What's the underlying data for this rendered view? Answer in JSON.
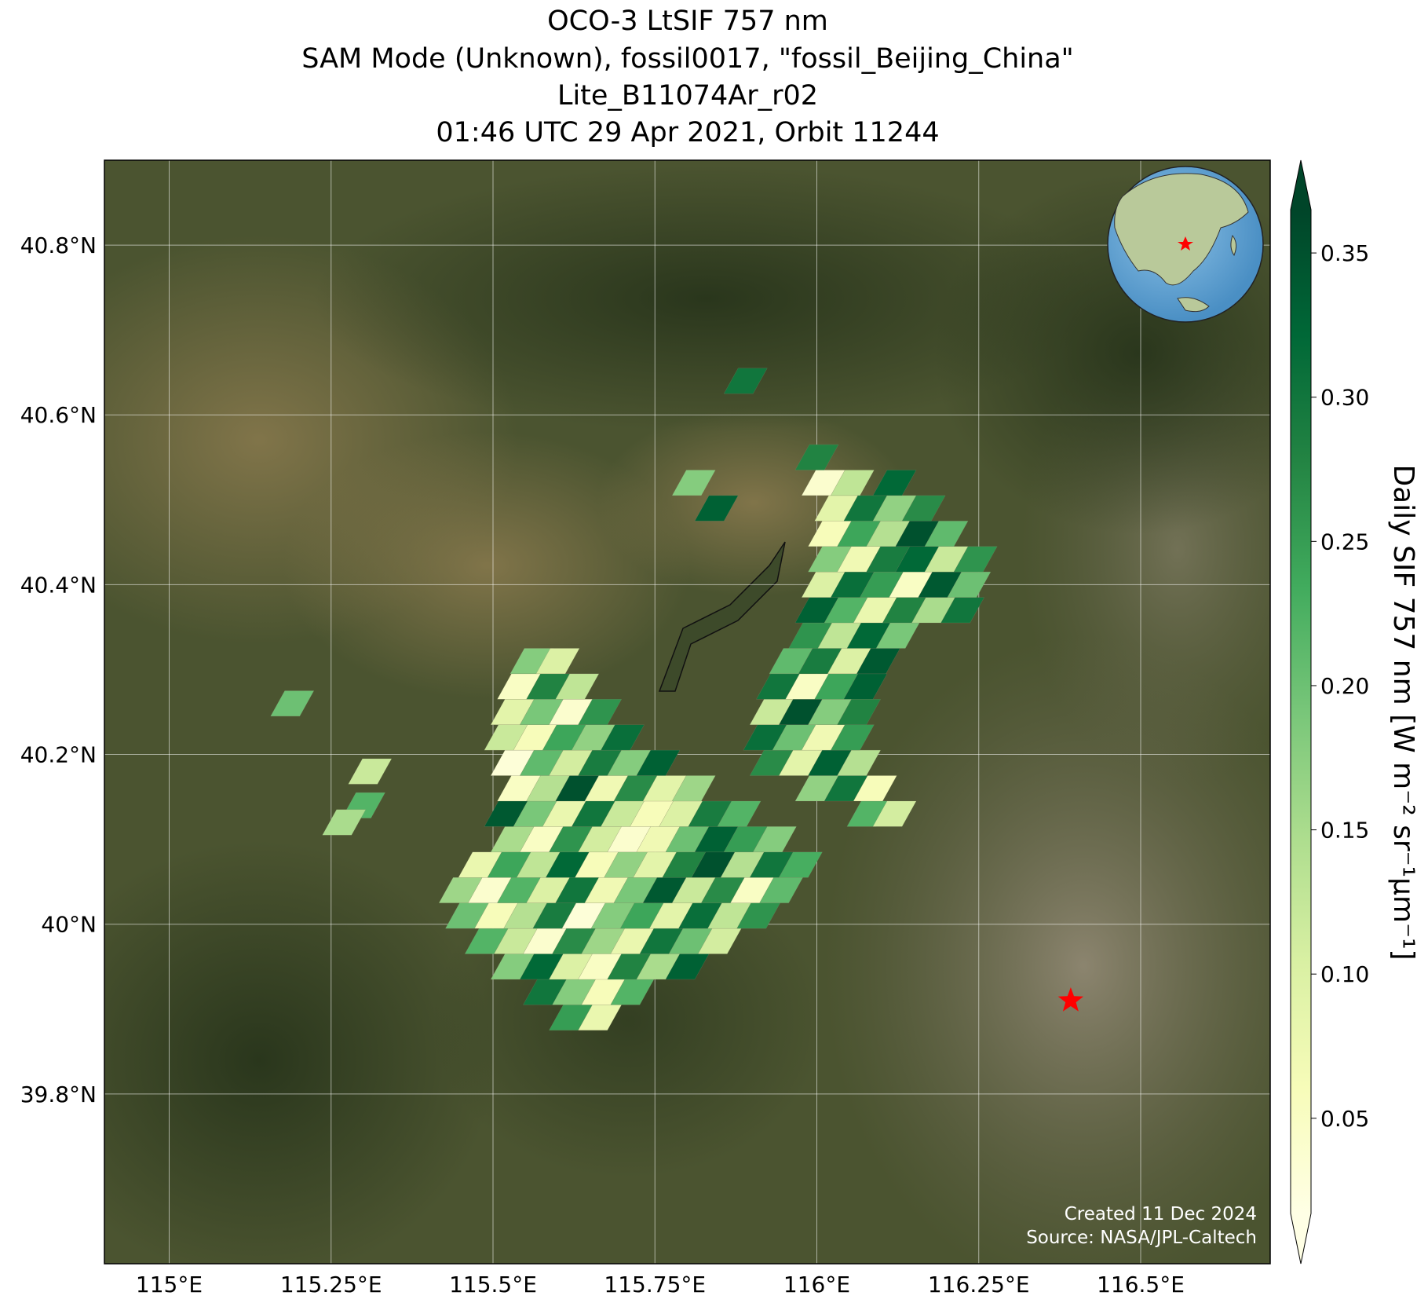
{
  "chart_data": {
    "type": "map",
    "title": [
      "OCO-3 LtSIF 757 nm",
      "SAM Mode (Unknown), fossil0017, \"fossil_Beijing_China\"",
      "Lite_B11074Ar_r02",
      "01:46 UTC 29 Apr 2021, Orbit 11244"
    ],
    "xlim": [
      114.9,
      116.7
    ],
    "ylim": [
      39.6,
      40.9
    ],
    "xticks": [
      {
        "value": 115,
        "label": "115°E"
      },
      {
        "value": 115.25,
        "label": "115.25°E"
      },
      {
        "value": 115.5,
        "label": "115.5°E"
      },
      {
        "value": 115.75,
        "label": "115.75°E"
      },
      {
        "value": 116,
        "label": "116°E"
      },
      {
        "value": 116.25,
        "label": "116.25°E"
      },
      {
        "value": 116.5,
        "label": "116.5°E"
      }
    ],
    "yticks": [
      {
        "value": 39.8,
        "label": "39.8°N"
      },
      {
        "value": 40,
        "label": "40°N"
      },
      {
        "value": 40.2,
        "label": "40.2°N"
      },
      {
        "value": 40.4,
        "label": "40.4°N"
      },
      {
        "value": 40.6,
        "label": "40.6°N"
      },
      {
        "value": 40.8,
        "label": "40.8°N"
      }
    ],
    "grid": true,
    "colorbar": {
      "label": "Daily SIF 757 nm [W m⁻² sr⁻¹µm⁻¹]",
      "clim": [
        0.017,
        0.365
      ],
      "ticks": [
        0.05,
        0.1,
        0.15,
        0.2,
        0.25,
        0.3,
        0.35
      ],
      "tick_labels": [
        "0.05",
        "0.10",
        "0.15",
        "0.20",
        "0.25",
        "0.30",
        "0.35"
      ],
      "colormap": [
        "#ffffe5",
        "#f7fcb9",
        "#d9f0a3",
        "#addd8e",
        "#78c679",
        "#41ab5d",
        "#238443",
        "#006837",
        "#004529"
      ],
      "extend": "both"
    },
    "sif": {
      "x": [
        115.62,
        115.665,
        115.58,
        115.625,
        115.67,
        115.715,
        115.53,
        115.575,
        115.62,
        115.665,
        115.71,
        115.755,
        115.8,
        115.49,
        115.535,
        115.58,
        115.625,
        115.67,
        115.715,
        115.76,
        115.805,
        115.85,
        115.46,
        115.505,
        115.55,
        115.595,
        115.64,
        115.685,
        115.73,
        115.775,
        115.82,
        115.865,
        115.91,
        115.45,
        115.495,
        115.54,
        115.585,
        115.63,
        115.675,
        115.72,
        115.765,
        115.81,
        115.855,
        115.9,
        115.945,
        115.48,
        115.525,
        115.57,
        115.615,
        115.66,
        115.705,
        115.75,
        115.795,
        115.84,
        115.885,
        115.93,
        115.975,
        115.53,
        115.575,
        115.62,
        115.665,
        115.71,
        115.755,
        115.8,
        115.845,
        115.89,
        115.935,
        115.52,
        115.565,
        115.61,
        115.655,
        115.7,
        115.745,
        115.79,
        115.835,
        115.88,
        115.54,
        115.585,
        115.63,
        115.675,
        115.72,
        115.765,
        115.81,
        115.53,
        115.575,
        115.62,
        115.665,
        115.71,
        115.755,
        115.52,
        115.565,
        115.61,
        115.655,
        115.7,
        115.53,
        115.575,
        115.62,
        115.665,
        115.54,
        115.585,
        115.63,
        115.56,
        115.6,
        116.08,
        116.12,
        116.0,
        116.045,
        116.09,
        115.93,
        115.975,
        116.02,
        116.065,
        115.92,
        115.965,
        116.01,
        116.055,
        115.93,
        115.975,
        116.02,
        116.065,
        115.94,
        115.985,
        116.03,
        116.075,
        115.96,
        116.005,
        116.05,
        116.095,
        115.99,
        116.035,
        116.08,
        116.125,
        116.0,
        116.045,
        116.09,
        116.135,
        116.18,
        116.225,
        116.01,
        116.055,
        116.1,
        116.145,
        116.19,
        116.235,
        116.02,
        116.065,
        116.11,
        116.155,
        116.2,
        116.245,
        116.02,
        116.065,
        116.11,
        116.155,
        116.2,
        116.03,
        116.075,
        116.12,
        116.165,
        116.01,
        116.055,
        116.12,
        116.0,
        115.81,
        115.845,
        115.89,
        115.19,
        115.31,
        115.3,
        115.27
      ],
      "y": [
        39.89,
        39.89,
        39.92,
        39.92,
        39.92,
        39.92,
        39.95,
        39.95,
        39.95,
        39.95,
        39.95,
        39.95,
        39.95,
        39.98,
        39.98,
        39.98,
        39.98,
        39.98,
        39.98,
        39.98,
        39.98,
        39.98,
        40.01,
        40.01,
        40.01,
        40.01,
        40.01,
        40.01,
        40.01,
        40.01,
        40.01,
        40.01,
        40.01,
        40.04,
        40.04,
        40.04,
        40.04,
        40.04,
        40.04,
        40.04,
        40.04,
        40.04,
        40.04,
        40.04,
        40.04,
        40.07,
        40.07,
        40.07,
        40.07,
        40.07,
        40.07,
        40.07,
        40.07,
        40.07,
        40.07,
        40.07,
        40.07,
        40.1,
        40.1,
        40.1,
        40.1,
        40.1,
        40.1,
        40.1,
        40.1,
        40.1,
        40.1,
        40.13,
        40.13,
        40.13,
        40.13,
        40.13,
        40.13,
        40.13,
        40.13,
        40.13,
        40.16,
        40.16,
        40.16,
        40.16,
        40.16,
        40.16,
        40.16,
        40.19,
        40.19,
        40.19,
        40.19,
        40.19,
        40.19,
        40.22,
        40.22,
        40.22,
        40.22,
        40.22,
        40.25,
        40.25,
        40.25,
        40.25,
        40.28,
        40.28,
        40.28,
        40.31,
        40.31,
        40.13,
        40.13,
        40.16,
        40.16,
        40.16,
        40.19,
        40.19,
        40.19,
        40.19,
        40.22,
        40.22,
        40.22,
        40.22,
        40.25,
        40.25,
        40.25,
        40.25,
        40.28,
        40.28,
        40.28,
        40.28,
        40.31,
        40.31,
        40.31,
        40.31,
        40.34,
        40.34,
        40.34,
        40.34,
        40.37,
        40.37,
        40.37,
        40.37,
        40.37,
        40.37,
        40.4,
        40.4,
        40.4,
        40.4,
        40.4,
        40.4,
        40.43,
        40.43,
        40.43,
        40.43,
        40.43,
        40.43,
        40.46,
        40.46,
        40.46,
        40.46,
        40.46,
        40.49,
        40.49,
        40.49,
        40.49,
        40.52,
        40.52,
        40.52,
        40.55,
        40.52,
        40.49,
        40.64,
        40.26,
        40.18,
        40.14,
        40.12
      ],
      "values": [
        0.25,
        0.08,
        0.3,
        0.18,
        0.06,
        0.22,
        0.18,
        0.32,
        0.1,
        0.05,
        0.28,
        0.15,
        0.33,
        0.22,
        0.12,
        0.04,
        0.27,
        0.16,
        0.08,
        0.3,
        0.2,
        0.11,
        0.2,
        0.06,
        0.14,
        0.29,
        0.03,
        0.18,
        0.24,
        0.09,
        0.31,
        0.13,
        0.26,
        0.16,
        0.04,
        0.22,
        0.1,
        0.3,
        0.07,
        0.19,
        0.34,
        0.12,
        0.27,
        0.05,
        0.21,
        0.08,
        0.24,
        0.13,
        0.32,
        0.06,
        0.17,
        0.09,
        0.28,
        0.35,
        0.14,
        0.3,
        0.23,
        0.15,
        0.05,
        0.26,
        0.11,
        0.04,
        0.07,
        0.2,
        0.33,
        0.25,
        0.18,
        0.34,
        0.19,
        0.08,
        0.3,
        0.12,
        0.06,
        0.1,
        0.29,
        0.22,
        0.05,
        0.14,
        0.35,
        0.07,
        0.27,
        0.09,
        0.16,
        0.03,
        0.21,
        0.11,
        0.29,
        0.18,
        0.33,
        0.12,
        0.06,
        0.24,
        0.17,
        0.31,
        0.09,
        0.19,
        0.04,
        0.26,
        0.05,
        0.28,
        0.13,
        0.18,
        0.1,
        0.22,
        0.11,
        0.17,
        0.3,
        0.06,
        0.27,
        0.09,
        0.33,
        0.14,
        0.31,
        0.2,
        0.07,
        0.25,
        0.12,
        0.35,
        0.18,
        0.28,
        0.3,
        0.05,
        0.24,
        0.33,
        0.21,
        0.29,
        0.1,
        0.34,
        0.26,
        0.13,
        0.32,
        0.19,
        0.33,
        0.22,
        0.08,
        0.28,
        0.15,
        0.3,
        0.1,
        0.31,
        0.25,
        0.05,
        0.34,
        0.2,
        0.18,
        0.07,
        0.29,
        0.32,
        0.12,
        0.26,
        0.06,
        0.24,
        0.14,
        0.35,
        0.21,
        0.09,
        0.3,
        0.17,
        0.27,
        0.04,
        0.13,
        0.32,
        0.28,
        0.18,
        0.33,
        0.3,
        0.2,
        0.12,
        0.22,
        0.15
      ]
    },
    "target": {
      "lon": 116.392,
      "lat": 39.91,
      "color": "#ff0000"
    },
    "credits": [
      "Created 11 Dec 2024",
      "Source: NASA/JPL-Caltech"
    ]
  }
}
